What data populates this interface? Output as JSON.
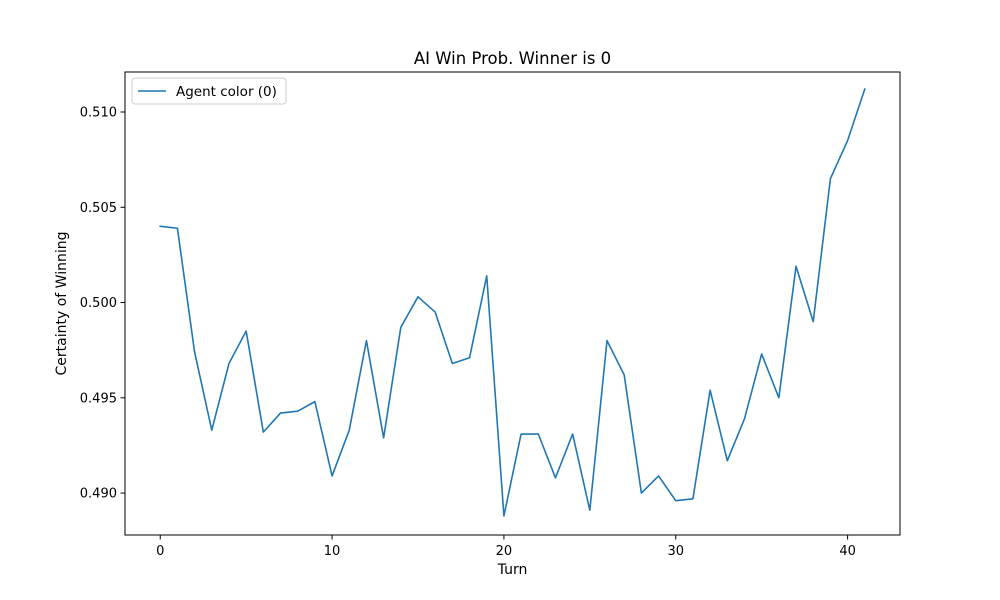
{
  "chart_data": {
    "type": "line",
    "title": "AI Win Prob. Winner is 0",
    "xlabel": "Turn",
    "ylabel": "Certainty of Winning",
    "xlim": [
      -2.05,
      43.05
    ],
    "ylim": [
      0.4878,
      0.5121
    ],
    "xticks": [
      0,
      10,
      20,
      30,
      40
    ],
    "yticks": [
      0.49,
      0.495,
      0.5,
      0.505,
      0.51
    ],
    "ytick_labels": [
      "0.490",
      "0.495",
      "0.500",
      "0.505",
      "0.510"
    ],
    "grid": false,
    "legend_position": "top-left",
    "color": "#1f77b4",
    "series": [
      {
        "name": "Agent color (0)",
        "x": [
          0,
          1,
          2,
          3,
          4,
          5,
          6,
          7,
          8,
          9,
          10,
          11,
          12,
          13,
          14,
          15,
          16,
          17,
          18,
          19,
          20,
          21,
          22,
          23,
          24,
          25,
          26,
          27,
          28,
          29,
          30,
          31,
          32,
          33,
          34,
          35,
          36,
          37,
          38,
          39,
          40,
          41
        ],
        "values": [
          0.504,
          0.5039,
          0.4974,
          0.4933,
          0.4968,
          0.4985,
          0.4932,
          0.4942,
          0.4943,
          0.4948,
          0.4909,
          0.4933,
          0.498,
          0.4929,
          0.4987,
          0.5003,
          0.4995,
          0.4968,
          0.4971,
          0.5014,
          0.4888,
          0.4931,
          0.4931,
          0.4908,
          0.4931,
          0.4891,
          0.498,
          0.4962,
          0.49,
          0.4909,
          0.4896,
          0.4897,
          0.4954,
          0.4917,
          0.4939,
          0.4973,
          0.495,
          0.5019,
          0.499,
          0.5065,
          0.5085,
          0.5112
        ]
      }
    ]
  }
}
